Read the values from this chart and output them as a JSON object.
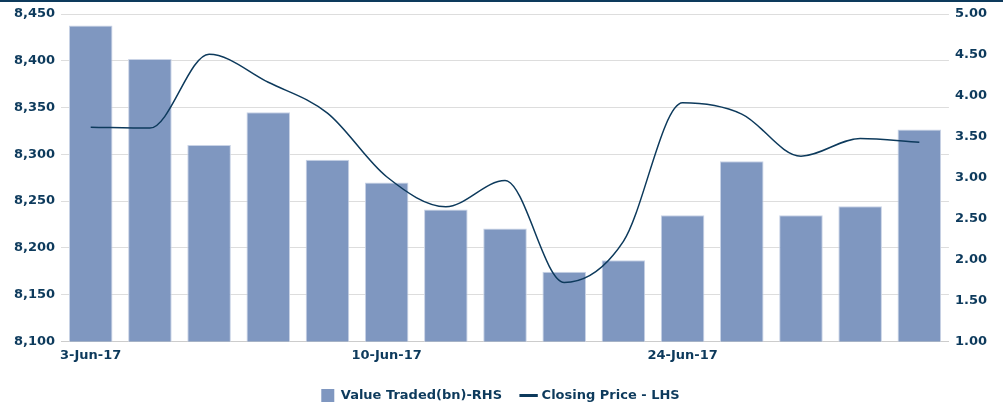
{
  "chart_data": {
    "type": "bar",
    "categories": [
      "3-Jun-17",
      null,
      null,
      null,
      null,
      "10-Jun-17",
      null,
      null,
      null,
      null,
      "24-Jun-17",
      null,
      null,
      null,
      null
    ],
    "series": [
      {
        "name": "Value Traded(bn)-RHS",
        "axis": "y2",
        "color": "#7f97c0",
        "values": [
          4.86,
          4.45,
          3.4,
          3.8,
          3.22,
          2.94,
          2.61,
          2.38,
          1.85,
          1.99,
          2.54,
          3.2,
          2.54,
          2.65,
          3.59
        ]
      },
      {
        "name": "Closing Price - LHS",
        "type": "line",
        "axis": "y",
        "color": "#0d3a5c",
        "values": [
          8329,
          8328,
          8407,
          8377,
          8344,
          8276,
          8244,
          8272,
          8163,
          8207,
          8355,
          8343,
          8298,
          8317,
          8313
        ]
      }
    ],
    "ylim": [
      8100,
      8450
    ],
    "yticks": [
      {
        "value": 8100,
        "label": "8,100"
      },
      {
        "value": 8150,
        "label": "8,150"
      },
      {
        "value": 8200,
        "label": "8,200"
      },
      {
        "value": 8250,
        "label": "8,250"
      },
      {
        "value": 8300,
        "label": "8,300"
      },
      {
        "value": 8350,
        "label": "8,350"
      },
      {
        "value": 8400,
        "label": "8,400"
      },
      {
        "value": 8450,
        "label": "8,450"
      }
    ],
    "y2lim": [
      1,
      5
    ],
    "y2ticks": [
      {
        "value": 1,
        "label": "1.00"
      },
      {
        "value": 1.5,
        "label": "1.50"
      },
      {
        "value": 2,
        "label": "2.00"
      },
      {
        "value": 2.5,
        "label": "2.50"
      },
      {
        "value": 3,
        "label": "3.00"
      },
      {
        "value": 3.5,
        "label": "3.50"
      },
      {
        "value": 4,
        "label": "4.00"
      },
      {
        "value": 4.5,
        "label": "4.50"
      },
      {
        "value": 5,
        "label": "5.00"
      }
    ],
    "grid": "y",
    "legend": "bottom",
    "marker": "none",
    "line_style": "solid"
  }
}
